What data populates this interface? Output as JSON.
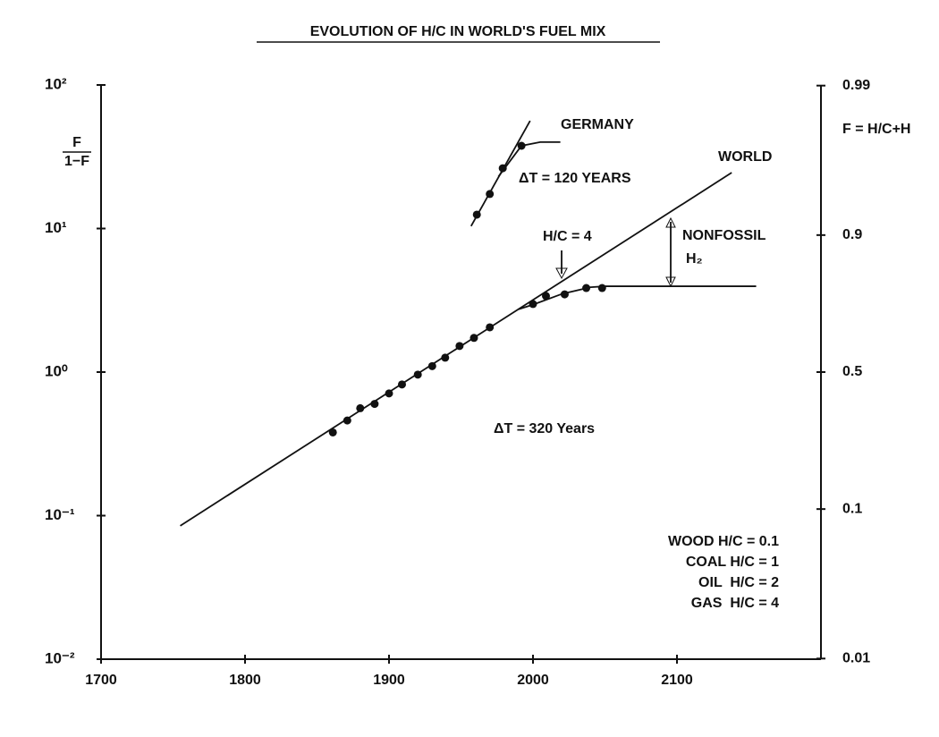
{
  "chart_data": {
    "type": "scatter",
    "title": "EVOLUTION OF H/C IN WORLD'S FUEL MIX",
    "ylabel": {
      "numerator": "F",
      "denominator": "1−F"
    },
    "y2label": "F = H/C+H",
    "xlim": [
      1700,
      2200
    ],
    "xticks": [
      1700,
      1800,
      1900,
      2000,
      2100
    ],
    "ylim": [
      0.01,
      100
    ],
    "yscale": "log",
    "yticks": [
      {
        "value": 0.01,
        "label": "10⁻²"
      },
      {
        "value": 0.1,
        "label": "10⁻¹"
      },
      {
        "value": 1,
        "label": "10⁰"
      },
      {
        "value": 10,
        "label": "10¹"
      },
      {
        "value": 100,
        "label": "10²"
      }
    ],
    "y2lim": [
      0.01,
      0.99
    ],
    "y2scale": "logit",
    "y2ticks": [
      0.01,
      0.1,
      0.5,
      0.9,
      0.99
    ],
    "series": [
      {
        "name": "WORLD",
        "color": "#111111",
        "x": [
          1861,
          1871,
          1880,
          1890,
          1900,
          1909,
          1920,
          1930,
          1939,
          1949,
          1959,
          1970,
          2000,
          2009,
          2022,
          2037,
          2048
        ],
        "values": [
          0.38,
          0.46,
          0.56,
          0.6,
          0.71,
          0.82,
          0.96,
          1.1,
          1.26,
          1.52,
          1.73,
          2.05,
          2.98,
          3.39,
          3.48,
          3.85,
          3.85
        ]
      },
      {
        "name": "GERMANY",
        "color": "#111111",
        "x": [
          1961,
          1970,
          1979,
          1992
        ],
        "values": [
          12.5,
          17.4,
          26.3,
          37.7
        ]
      }
    ],
    "trend_lines": [
      {
        "x": [
          1755,
          2138
        ],
        "values": [
          0.085,
          24.5
        ]
      },
      {
        "x": [
          1957,
          1998
        ],
        "values": [
          10.4,
          56.3
        ]
      }
    ],
    "fit_curves": [
      {
        "x": [
          1990,
          2000,
          2020,
          2040,
          2050,
          2155
        ],
        "values": [
          2.74,
          2.95,
          3.5,
          3.9,
          3.96,
          3.96
        ]
      },
      {
        "x": [
          1976,
          1992,
          2005,
          2019
        ],
        "values": [
          23,
          37.7,
          40,
          40
        ]
      }
    ],
    "annotations": [
      "ΔT = 120 YEARS",
      "H/C = 4",
      "NONFOSSIL",
      "H₂",
      "ΔT = 320 Years"
    ],
    "notes": [
      "WOOD H/C = 0.1",
      "COAL H/C = 1",
      "OIL  H/C = 2",
      "GAS  H/C = 4"
    ]
  }
}
